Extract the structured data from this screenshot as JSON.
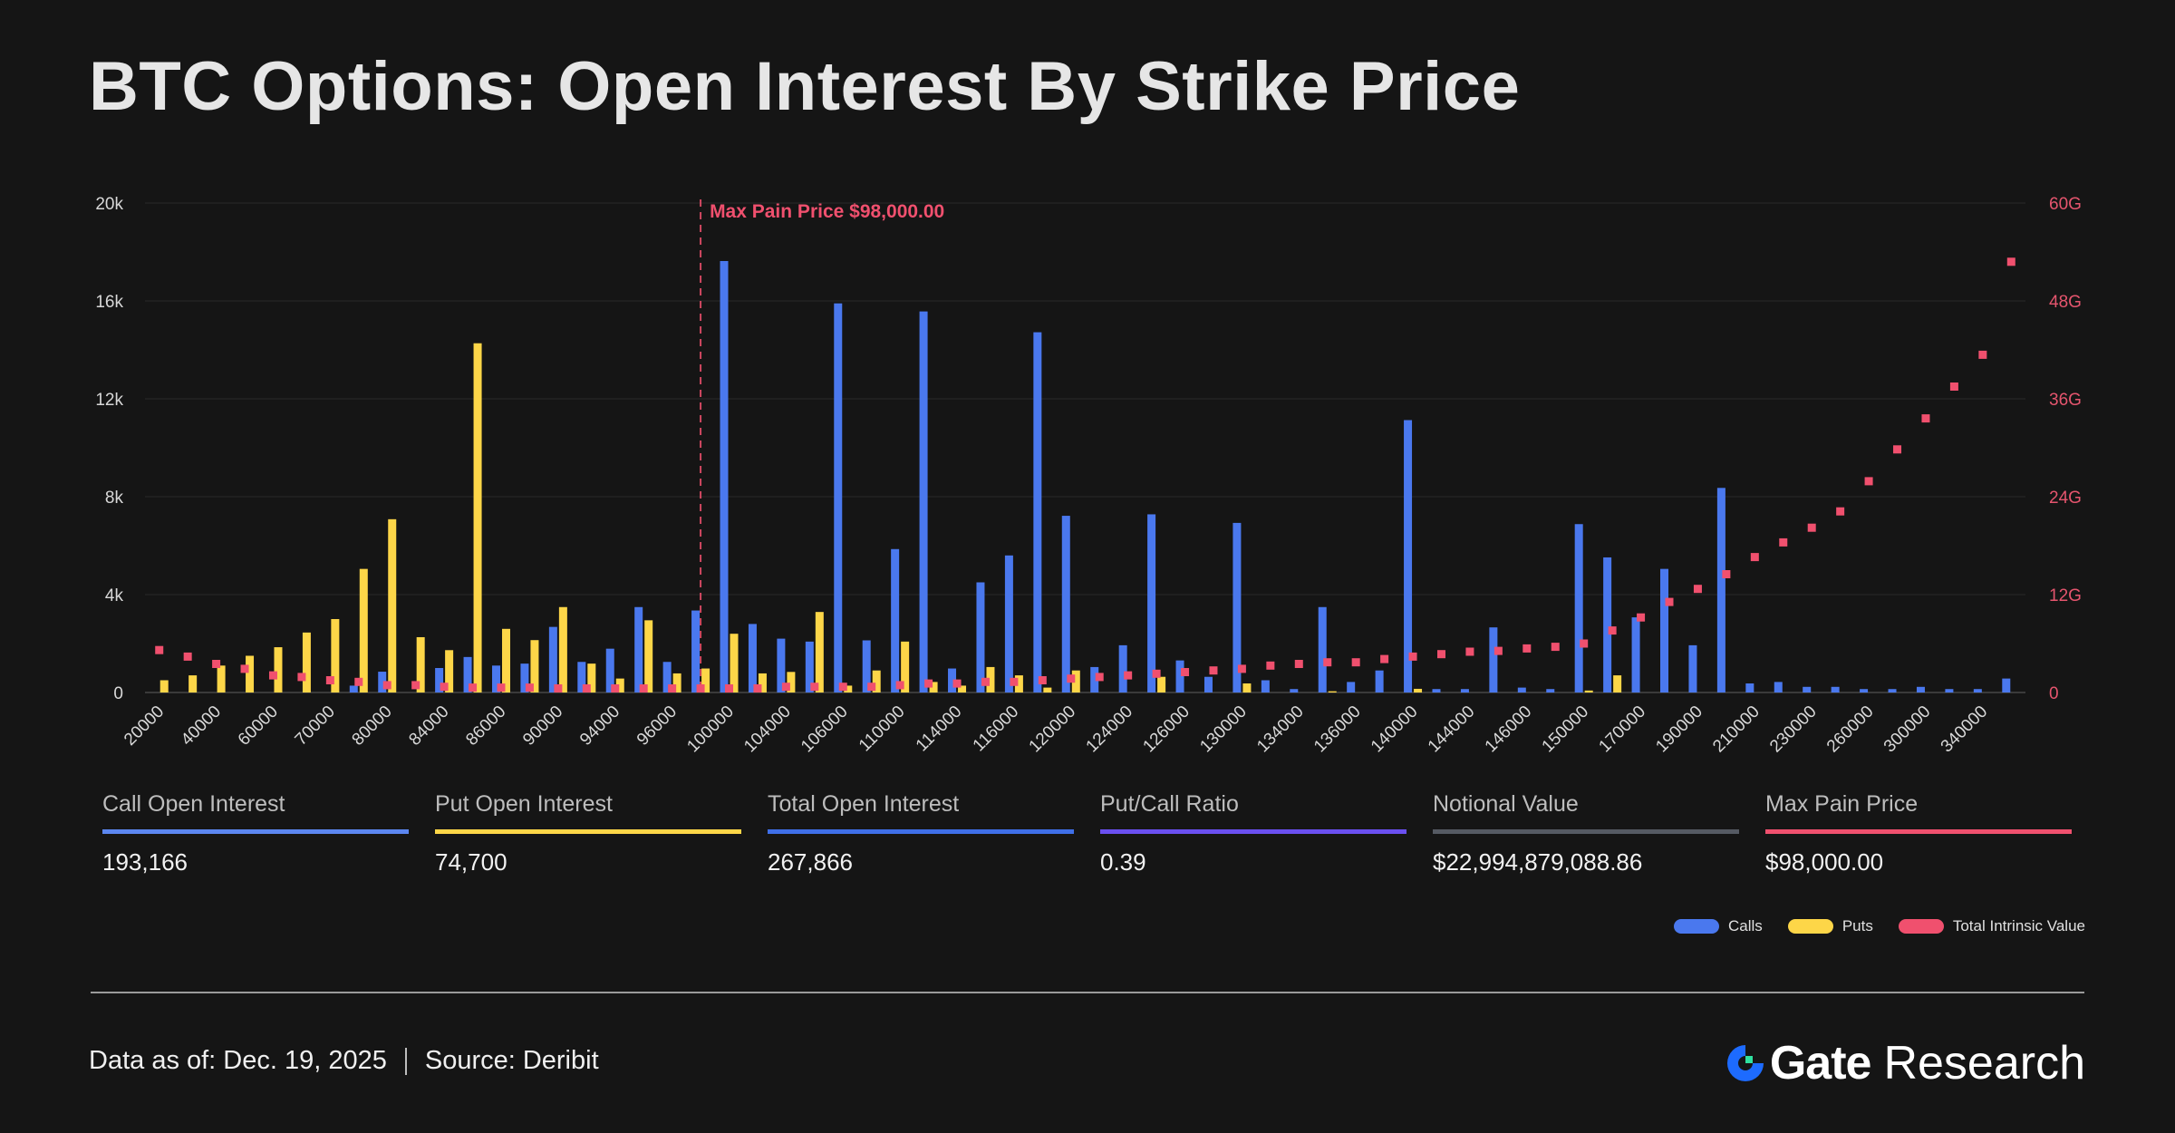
{
  "title": "BTC Options: Open Interest By Strike Price",
  "colors": {
    "calls": "#4a78ee",
    "puts": "#fdd648",
    "intrinsic": "#f0506e",
    "ratio": "#6a4ff0",
    "notional": "#555a63",
    "background": "#151515"
  },
  "chart_data": {
    "type": "bar",
    "title": "BTC Options: Open Interest By Strike Price",
    "xlabel": "Strike Price",
    "ylabel": "Open Interest",
    "y2label": "Total Intrinsic Value",
    "ylim": [
      0,
      20000
    ],
    "y2lim": [
      0,
      60
    ],
    "yticks": [
      "0",
      "4k",
      "8k",
      "12k",
      "16k",
      "20k"
    ],
    "y2ticks": [
      "0",
      "12G",
      "24G",
      "36G",
      "48G",
      "60G"
    ],
    "grid": true,
    "legend": "bottom-right",
    "annotation": {
      "label": "Max Pain Price $98,000.00",
      "strike": "98000"
    },
    "categories": [
      "20000",
      "30000",
      "40000",
      "50000",
      "60000",
      "65000",
      "70000",
      "75000",
      "80000",
      "82000",
      "84000",
      "85000",
      "86000",
      "88000",
      "90000",
      "92000",
      "94000",
      "95000",
      "96000",
      "98000",
      "100000",
      "102000",
      "104000",
      "105000",
      "106000",
      "108000",
      "110000",
      "112000",
      "114000",
      "115000",
      "116000",
      "118000",
      "120000",
      "122000",
      "124000",
      "125000",
      "126000",
      "128000",
      "130000",
      "132000",
      "134000",
      "135000",
      "136000",
      "138000",
      "140000",
      "142000",
      "144000",
      "145000",
      "146000",
      "148000",
      "150000",
      "160000",
      "170000",
      "180000",
      "190000",
      "200000",
      "210000",
      "220000",
      "230000",
      "240000",
      "260000",
      "280000",
      "300000",
      "320000",
      "340000",
      "360000"
    ],
    "tick_labels": [
      "20000",
      "40000",
      "60000",
      "70000",
      "80000",
      "84000",
      "86000",
      "90000",
      "94000",
      "96000",
      "100000",
      "104000",
      "106000",
      "110000",
      "114000",
      "116000",
      "120000",
      "124000",
      "126000",
      "130000",
      "134000",
      "136000",
      "140000",
      "144000",
      "146000",
      "150000",
      "170000",
      "190000",
      "210000",
      "230000",
      "260000",
      "300000",
      "340000"
    ],
    "series": [
      {
        "name": "Calls",
        "axis": "left",
        "kind": "bar",
        "values": [
          0,
          0,
          0,
          0,
          0,
          0,
          0,
          280,
          850,
          0,
          1000,
          1450,
          1100,
          1180,
          2680,
          1250,
          1790,
          3490,
          1250,
          3350,
          17630,
          2800,
          2200,
          2080,
          15900,
          2130,
          5860,
          15570,
          980,
          4500,
          5600,
          14720,
          7220,
          1040,
          1930,
          7280,
          1310,
          640,
          6930,
          500,
          140,
          3490,
          430,
          900,
          11130,
          140,
          140,
          2660,
          200,
          140,
          6880,
          5520,
          3070,
          5050,
          1930,
          8360,
          370,
          430,
          230,
          230,
          140,
          140,
          230,
          140,
          140,
          570
        ]
      },
      {
        "name": "Puts",
        "axis": "left",
        "kind": "bar",
        "values": [
          500,
          700,
          1100,
          1500,
          1850,
          2450,
          3000,
          5050,
          7080,
          2260,
          1730,
          14270,
          2600,
          2140,
          3490,
          1180,
          570,
          2950,
          780,
          980,
          2400,
          780,
          840,
          3290,
          280,
          900,
          2080,
          430,
          280,
          1040,
          700,
          200,
          900,
          0,
          0,
          640,
          0,
          0,
          370,
          0,
          0,
          50,
          0,
          0,
          150,
          0,
          0,
          0,
          0,
          0,
          80,
          700,
          0,
          0,
          0,
          0,
          0,
          0,
          0,
          0,
          0,
          0,
          0,
          0,
          0,
          0
        ]
      },
      {
        "name": "Total Intrinsic Value",
        "axis": "right",
        "kind": "scatter",
        "unit": "G",
        "values": [
          5.2,
          4.4,
          3.5,
          2.9,
          2.1,
          1.9,
          1.5,
          1.3,
          0.9,
          0.9,
          0.7,
          0.6,
          0.6,
          0.6,
          0.5,
          0.5,
          0.5,
          0.5,
          0.5,
          0.5,
          0.5,
          0.5,
          0.7,
          0.7,
          0.7,
          0.7,
          0.9,
          1.1,
          1.1,
          1.3,
          1.3,
          1.5,
          1.7,
          1.9,
          2.1,
          2.3,
          2.5,
          2.7,
          2.9,
          3.3,
          3.5,
          3.7,
          3.7,
          4.1,
          4.4,
          4.7,
          5.0,
          5.1,
          5.4,
          5.6,
          6.0,
          7.6,
          9.2,
          11.1,
          12.7,
          14.5,
          16.6,
          18.4,
          20.2,
          22.2,
          25.9,
          29.8,
          33.6,
          37.5,
          41.4,
          52.8
        ]
      }
    ]
  },
  "stats": [
    {
      "label": "Call Open Interest",
      "value": "193,166",
      "color": "#5b86f0"
    },
    {
      "label": "Put Open Interest",
      "value": "74,700",
      "color": "#fdd648"
    },
    {
      "label": "Total Open Interest",
      "value": "267,866",
      "color": "#3f6fe8"
    },
    {
      "label": "Put/Call Ratio",
      "value": "0.39",
      "color": "#6a4ff0"
    },
    {
      "label": "Notional Value",
      "value": "$22,994,879,088.86",
      "color": "#555a63"
    },
    {
      "label": "Max Pain Price",
      "value": "$98,000.00",
      "color": "#f0506e"
    }
  ],
  "legend": [
    {
      "label": "Calls",
      "color": "#4a78ee"
    },
    {
      "label": "Puts",
      "color": "#fdd648"
    },
    {
      "label": "Total Intrinsic Value",
      "color": "#f0506e"
    }
  ],
  "footer": {
    "date": "Data as of: Dec. 19, 2025",
    "source_label": "Source:",
    "source": "Deribit",
    "logo_brand": "Gate",
    "logo_suffix": "Research"
  }
}
